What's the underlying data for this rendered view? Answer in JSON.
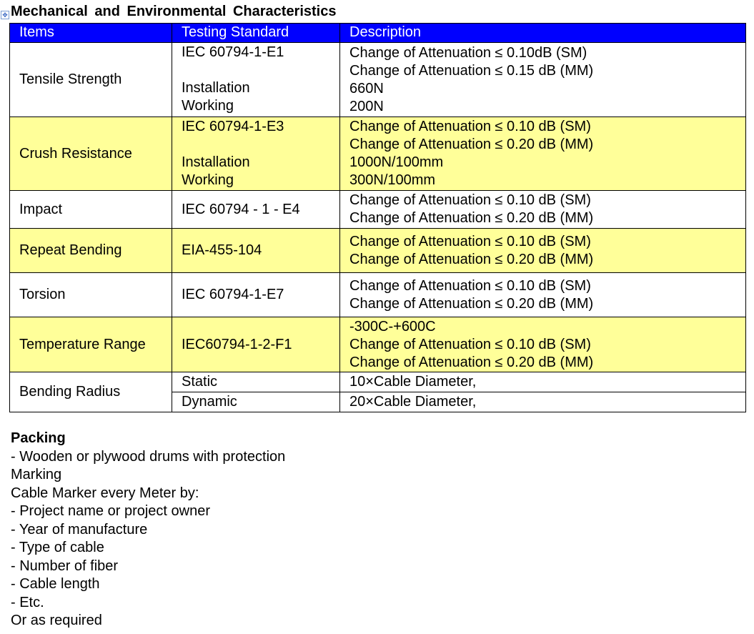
{
  "title": "Mechanical  and Environmental  Characteristics",
  "table": {
    "headers": [
      "Items",
      "Testing Standard",
      "Description"
    ],
    "header_color": "#0000ff",
    "stripe_color": "#ffff99",
    "rows": [
      {
        "item": "Tensile Strength",
        "standard": [
          "IEC 60794-1-E1",
          "",
          "Installation",
          "Working"
        ],
        "description": [
          "Change of Attenuation ≤ 0.10dB (SM)",
          "Change of Attenuation ≤ 0.15 dB (MM)",
          "660N",
          "200N"
        ]
      },
      {
        "item": "Crush Resistance",
        "standard": [
          "IEC 60794-1-E3",
          "",
          "Installation",
          "Working"
        ],
        "description": [
          "Change of Attenuation ≤ 0.10 dB (SM)",
          "Change of Attenuation ≤ 0.20 dB (MM)",
          "1000N/100mm",
          "300N/100mm"
        ]
      },
      {
        "item": "Impact",
        "standard": [
          "IEC 60794 - 1 - E4"
        ],
        "description": [
          "Change of Attenuation ≤ 0.10 dB (SM)",
          "Change of Attenuation ≤ 0.20 dB (MM)"
        ]
      },
      {
        "item": "Repeat Bending",
        "standard": [
          "EIA-455-104"
        ],
        "description": [
          "Change of Attenuation ≤ 0.10 dB (SM)",
          "Change of Attenuation ≤ 0.20 dB (MM)"
        ]
      },
      {
        "item": "Torsion",
        "standard": [
          "IEC 60794-1-E7"
        ],
        "description": [
          "Change of Attenuation ≤ 0.10 dB (SM)",
          "Change of Attenuation ≤ 0.20 dB (MM)"
        ]
      },
      {
        "item": "Temperature  Range",
        "standard": [
          "IEC60794-1-2-F1"
        ],
        "description": [
          "-300C-+600C",
          "Change of Attenuation ≤ 0.10 dB (SM)",
          "Change of Attenuation ≤ 0.20 dB (MM)"
        ]
      }
    ],
    "bending": {
      "item": "Bending Radius",
      "static_label": "Static",
      "static_value": "10×Cable Diameter,",
      "dynamic_label": "Dynamic",
      "dynamic_value": "20×Cable Diameter,"
    }
  },
  "packing": {
    "heading": "Packing",
    "lines": [
      "- Wooden or plywood drums with protection",
      "Marking",
      "Cable Marker every Meter by:",
      "- Project name or project owner",
      "- Year of manufacture",
      "- Type of cable",
      "- Number of fiber",
      "- Cable length",
      "- Etc.",
      "Or as required"
    ]
  }
}
